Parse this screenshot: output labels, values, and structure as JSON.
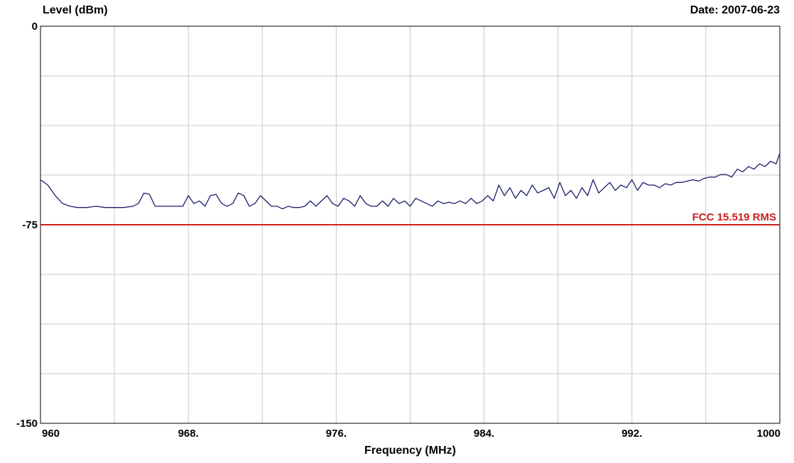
{
  "header": {
    "ylabel": "Level (dBm)",
    "date": "Date: 2007-06-23"
  },
  "chart_data": {
    "type": "line",
    "title": "",
    "xlabel": "Frequency (MHz)",
    "ylabel": "Level (dBm)",
    "xlim": [
      960,
      1000
    ],
    "ylim": [
      -150,
      0
    ],
    "x_ticks": [
      960,
      968,
      976,
      984,
      992,
      1000
    ],
    "x_tick_labels": [
      "960",
      "968.",
      "976.",
      "984.",
      "992.",
      "1000"
    ],
    "y_ticks": [
      0,
      -75,
      -150
    ],
    "y_tick_labels": [
      "0",
      "-75",
      "-150"
    ],
    "grid": true,
    "series": [
      {
        "color": "#1a1f6b",
        "x": [
          960,
          960.4,
          960.8,
          961.2,
          961.6,
          962.0,
          962.5,
          963.0,
          963.5,
          964.0,
          964.5,
          965.0,
          965.3,
          965.6,
          965.9,
          966.2,
          966.5,
          966.8,
          967.1,
          967.4,
          967.7,
          968.0,
          968.3,
          968.6,
          968.9,
          969.2,
          969.5,
          969.8,
          970.1,
          970.4,
          970.7,
          971.0,
          971.3,
          971.6,
          971.9,
          972.2,
          972.5,
          972.8,
          973.1,
          973.4,
          973.7,
          974.0,
          974.3,
          974.6,
          974.9,
          975.2,
          975.5,
          975.8,
          976.1,
          976.4,
          976.7,
          977.0,
          977.3,
          977.6,
          977.9,
          978.2,
          978.5,
          978.8,
          979.1,
          979.4,
          979.7,
          980.0,
          980.3,
          980.6,
          980.9,
          981.2,
          981.5,
          981.8,
          982.1,
          982.4,
          982.7,
          983.0,
          983.3,
          983.6,
          983.9,
          984.2,
          984.5,
          984.8,
          985.1,
          985.4,
          985.7,
          986.0,
          986.3,
          986.6,
          986.9,
          987.2,
          987.5,
          987.8,
          988.1,
          988.4,
          988.7,
          989.0,
          989.3,
          989.6,
          989.9,
          990.2,
          990.5,
          990.8,
          991.1,
          991.4,
          991.7,
          992.0,
          992.3,
          992.6,
          992.9,
          993.2,
          993.5,
          993.8,
          994.1,
          994.4,
          994.7,
          995.0,
          995.3,
          995.6,
          995.9,
          996.2,
          996.5,
          996.8,
          997.1,
          997.4,
          997.7,
          998.0,
          998.3,
          998.6,
          998.9,
          999.2,
          999.5,
          999.8,
          1000
        ],
        "y": [
          -58,
          -60,
          -64,
          -67,
          -68,
          -68.5,
          -68.5,
          -68,
          -68.5,
          -68.5,
          -68.5,
          -68,
          -67,
          -63,
          -63.5,
          -68,
          -68,
          -68,
          -68,
          -68,
          -68,
          -64,
          -67,
          -66,
          -68,
          -64,
          -63.5,
          -67,
          -68,
          -67,
          -63,
          -64,
          -68,
          -67,
          -64,
          -66,
          -68,
          -68,
          -69,
          -68,
          -68.5,
          -68.5,
          -68,
          -66,
          -68,
          -66,
          -64,
          -67,
          -68,
          -65,
          -66,
          -68,
          -64,
          -67,
          -68,
          -68,
          -66,
          -68,
          -65,
          -67,
          -66,
          -68,
          -65,
          -66,
          -67,
          -68,
          -66,
          -67,
          -66.5,
          -67,
          -66,
          -67,
          -65,
          -67,
          -66,
          -64,
          -66,
          -60,
          -64,
          -61,
          -65,
          -62,
          -64,
          -60,
          -63,
          -62,
          -61,
          -65,
          -59,
          -64,
          -62,
          -65,
          -61,
          -64,
          -58,
          -63,
          -61,
          -59,
          -62,
          -60,
          -61,
          -58,
          -62,
          -59,
          -60,
          -60,
          -61,
          -59.5,
          -60,
          -59,
          -59,
          -58.5,
          -58,
          -58.5,
          -57.5,
          -57,
          -57,
          -56,
          -56,
          -57,
          -54,
          -55,
          -53,
          -54,
          -52,
          -53,
          -51,
          -52,
          -48
        ]
      }
    ],
    "reference_lines": [
      {
        "y": -75,
        "label": "FCC 15.519 RMS",
        "color": "#cc1f1f"
      }
    ]
  }
}
